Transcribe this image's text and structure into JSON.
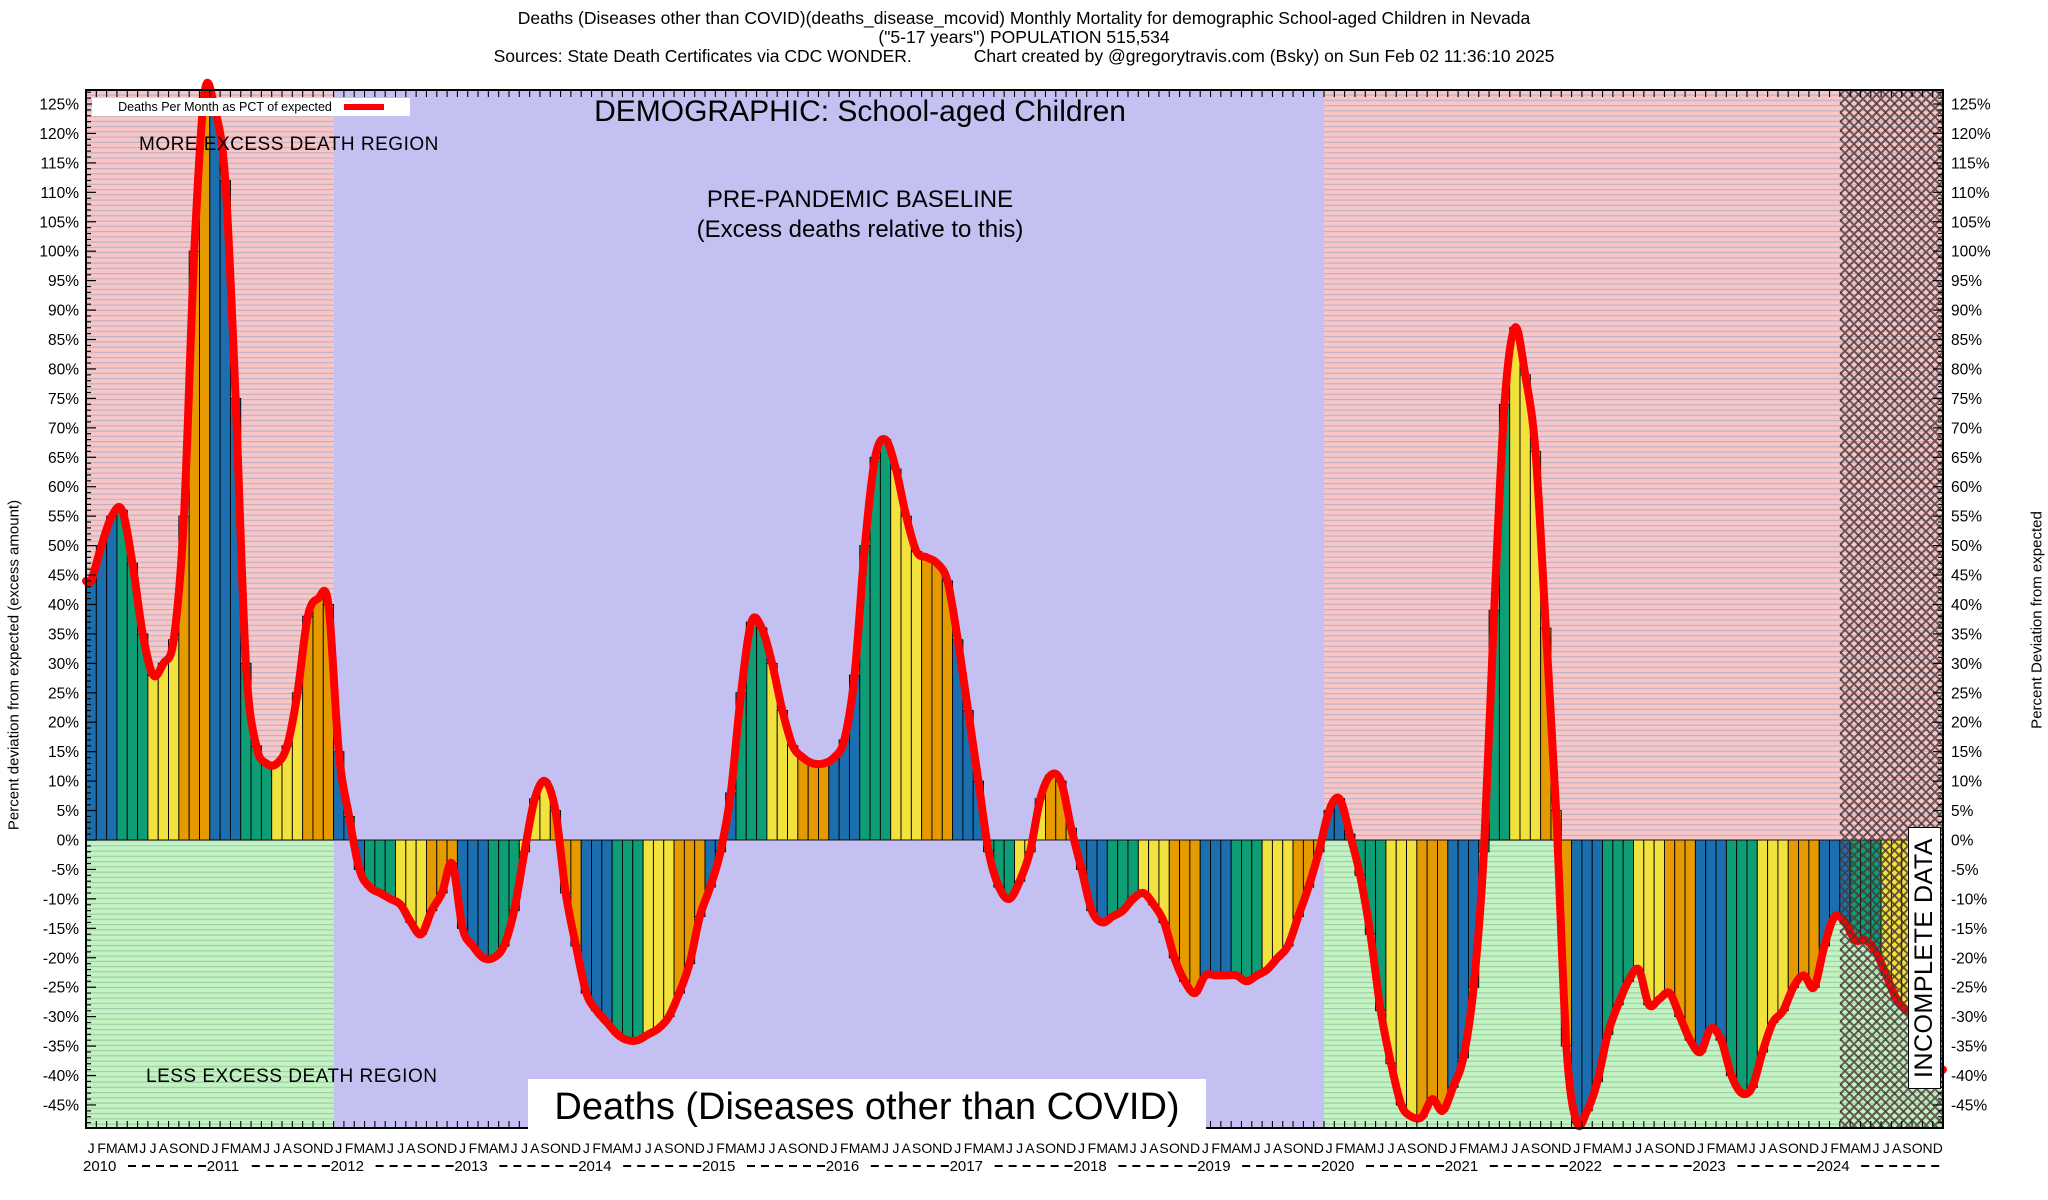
{
  "header": {
    "title_line1": "Deaths (Diseases other than COVID)(deaths_disease_mcovid) Monthly Mortality for demographic School-aged Children in Nevada",
    "title_line2": "(\"5-17 years\") POPULATION 515,534",
    "sources": "Sources: State Death Certificates via CDC WONDER.",
    "credit": "Chart created by @gregorytravis.com (Bsky) on Sun Feb 02 11:36:10 2025"
  },
  "legend": {
    "label": "Deaths Per Month as PCT of expected",
    "line_color": "#ff0000"
  },
  "annotations": {
    "more_excess": "MORE EXCESS DEATH REGION",
    "less_excess": "LESS EXCESS DEATH REGION",
    "demographic": "DEMOGRAPHIC: School-aged Children",
    "baseline_line1": "PRE-PANDEMIC BASELINE",
    "baseline_line2": "(Excess deaths relative to this)",
    "bottom_label": "Deaths (Diseases other than COVID)",
    "incomplete": "INCOMPLETE DATA",
    "y_label_left": "Percent deviation from expected (excess amount)",
    "y_label_right": "Percent Deviation from expected"
  },
  "chart_data": {
    "type": "bar",
    "series_name": "Deaths Per Month as PCT of expected",
    "unit": "percent deviation from expected (monthly)",
    "x_start": "2010-01",
    "x_end": "2024-12",
    "ylim": [
      -48.9,
      127.3
    ],
    "y_tick_min": -45,
    "y_tick_max": 125,
    "y_tick_step": 5,
    "grid": "horizontal hatch lines in excess regions",
    "legend_position": "top-left",
    "month_letters": "JFMAMJJASOND",
    "years": [
      {
        "year": 2010,
        "values": [
          44,
          50,
          55,
          56,
          47,
          35,
          28,
          30,
          34,
          55,
          100,
          127
        ]
      },
      {
        "year": 2011,
        "values": [
          124,
          112,
          75,
          30,
          16,
          13,
          13,
          16,
          25,
          38,
          41,
          40
        ]
      },
      {
        "year": 2012,
        "values": [
          15,
          4,
          -5,
          -8,
          -9,
          -10,
          -11,
          -14,
          -16,
          -12,
          -9,
          -4
        ]
      },
      {
        "year": 2013,
        "values": [
          -15,
          -18,
          -20,
          -20,
          -18,
          -12,
          -2,
          7,
          10,
          5,
          -9,
          -18
        ]
      },
      {
        "year": 2014,
        "values": [
          -26,
          -29,
          -31,
          -33,
          -34,
          -34,
          -33,
          -32,
          -30,
          -26,
          -21,
          -13
        ]
      },
      {
        "year": 2015,
        "values": [
          -8,
          -2,
          8,
          25,
          37,
          36,
          30,
          22,
          16,
          14,
          13,
          13
        ]
      },
      {
        "year": 2016,
        "values": [
          14,
          17,
          28,
          50,
          65,
          68,
          63,
          55,
          49,
          48,
          47,
          44
        ]
      },
      {
        "year": 2017,
        "values": [
          34,
          22,
          10,
          -2,
          -8,
          -10,
          -7,
          -2,
          7,
          11,
          10,
          2
        ]
      },
      {
        "year": 2018,
        "values": [
          -5,
          -12,
          -14,
          -13,
          -12,
          -10,
          -9,
          -11,
          -14,
          -20,
          -24,
          -26
        ]
      },
      {
        "year": 2019,
        "values": [
          -23,
          -23,
          -23,
          -23,
          -24,
          -23,
          -22,
          -20,
          -18,
          -13,
          -8,
          -2
        ]
      },
      {
        "year": 2020,
        "values": [
          5,
          7,
          1,
          -6,
          -16,
          -29,
          -38,
          -45,
          -47,
          -47,
          -44,
          -46
        ]
      },
      {
        "year": 2021,
        "values": [
          -42,
          -37,
          -25,
          -2,
          39,
          74,
          87,
          79,
          66,
          36,
          5,
          -35
        ]
      },
      {
        "year": 2022,
        "values": [
          -48,
          -46,
          -41,
          -33,
          -28,
          -24,
          -22,
          -28,
          -27,
          -26,
          -30,
          -34
        ]
      },
      {
        "year": 2023,
        "values": [
          -36,
          -32,
          -34,
          -40,
          -43,
          -42,
          -36,
          -31,
          -29,
          -25,
          -23,
          -25
        ]
      },
      {
        "year": 2024,
        "values": [
          -18,
          -13,
          -14,
          -17,
          -17,
          -19,
          -23,
          -27,
          -29,
          -30,
          -34,
          -39
        ]
      }
    ],
    "regions": {
      "more_excess_region": "above 0% outside baseline window, pink with horizontal hatch",
      "less_excess_region": "below 0% outside baseline window, green with horizontal hatch",
      "baseline_window": {
        "start": "2012-01",
        "end": "2020-01"
      },
      "incomplete_data": {
        "start": "2024-03",
        "end": "2024-12",
        "pattern": "dark crosshatch overlay"
      }
    },
    "colors": {
      "line": "#ff0000",
      "quarter_colors": [
        "#1b6fae",
        "#0d9e76",
        "#f2e23e",
        "#e59b00"
      ],
      "baseline_bg": "#c4c1f2",
      "excess_top_bg": "#f8c6c6",
      "excess_top_hatch": "#b3aec6",
      "excess_bottom_bg": "#c2f4c2",
      "excess_bottom_hatch": "#9fc3a8",
      "crosshatch": "#4a3535",
      "bar_outline": "#000000",
      "axis": "#000000"
    }
  }
}
